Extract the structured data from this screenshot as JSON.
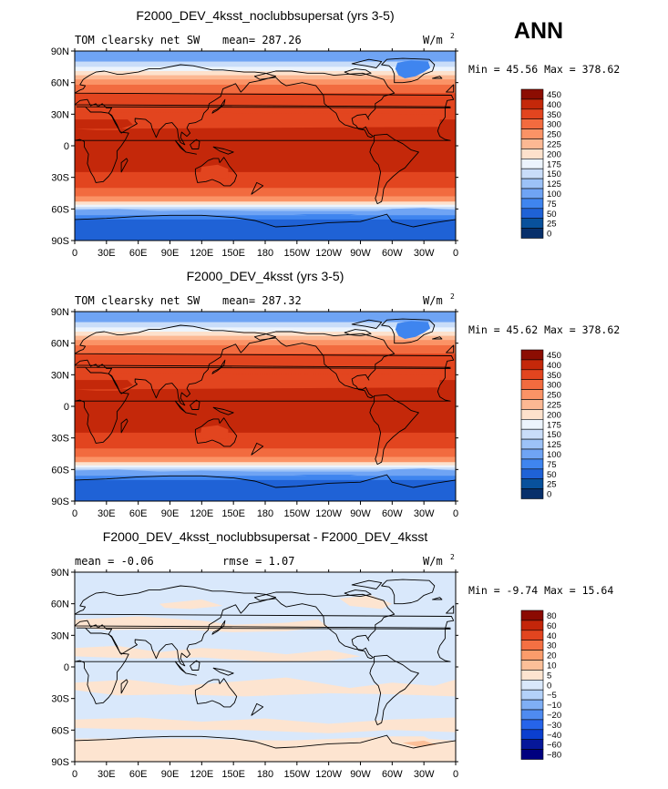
{
  "season": "ANN",
  "x_ticks": [
    "0",
    "30E",
    "60E",
    "90E",
    "120E",
    "150E",
    "180",
    "150W",
    "120W",
    "90W",
    "60W",
    "30W",
    "0"
  ],
  "y_ticks": [
    "90N",
    "60N",
    "30N",
    "0",
    "30S",
    "60S",
    "90S"
  ],
  "colors": {
    "abs": [
      "#08306b",
      "#08519c",
      "#1f62d6",
      "#3f85ef",
      "#6fa4f4",
      "#9cc2f7",
      "#c9ddf9",
      "#ecf4fd",
      "#fde1cc",
      "#fcb893",
      "#fb9366",
      "#f26b3f",
      "#e2451f",
      "#c4280a",
      "#8c0d02"
    ],
    "diff": [
      "#00007f",
      "#06179a",
      "#0b3fcf",
      "#2664ea",
      "#4f8bf1",
      "#7faff5",
      "#b3d1f9",
      "#d9e8fb",
      "#fde4d0",
      "#fcbf98",
      "#fb9c6b",
      "#f47043",
      "#e2451f",
      "#c4260a",
      "#8b0a02"
    ]
  },
  "chart_data": [
    {
      "type": "heatmap",
      "title": "F2000_DEV_4ksst_noclubbsupersat (yrs 3-5)",
      "left_label": "TOM clearsky net SW",
      "center_label": "mean= 287.26",
      "units_label": "W/m",
      "units_exponent": "2",
      "stats_label": "Min =  45.56 Max = 378.62",
      "min": 45.56,
      "max": 378.62,
      "mean": 287.26,
      "xlim": [
        0,
        360
      ],
      "ylim": [
        -90,
        90
      ],
      "colorbar_labels": [
        "450",
        "400",
        "350",
        "300",
        "250",
        "225",
        "200",
        "175",
        "150",
        "125",
        "100",
        "75",
        "50",
        "25",
        "0"
      ],
      "palette": "abs"
    },
    {
      "type": "heatmap",
      "title": "F2000_DEV_4ksst (yrs 3-5)",
      "left_label": "TOM clearsky net SW",
      "center_label": "mean= 287.32",
      "units_label": "W/m",
      "units_exponent": "2",
      "stats_label": "Min =  45.62 Max = 378.62",
      "min": 45.62,
      "max": 378.62,
      "mean": 287.32,
      "xlim": [
        0,
        360
      ],
      "ylim": [
        -90,
        90
      ],
      "colorbar_labels": [
        "450",
        "400",
        "350",
        "300",
        "250",
        "225",
        "200",
        "175",
        "150",
        "125",
        "100",
        "75",
        "50",
        "25",
        "0"
      ],
      "palette": "abs"
    },
    {
      "type": "heatmap",
      "title": "F2000_DEV_4ksst_noclubbsupersat - F2000_DEV_4ksst",
      "left_label": "mean =   -0.06",
      "center_label": "rmse =    1.07",
      "units_label": "W/m",
      "units_exponent": "2",
      "stats_label": "Min =  -9.74 Max =  15.64",
      "min": -9.74,
      "max": 15.64,
      "mean": -0.06,
      "rmse": 1.07,
      "xlim": [
        0,
        360
      ],
      "ylim": [
        -90,
        90
      ],
      "colorbar_labels": [
        "80",
        "60",
        "40",
        "30",
        "20",
        "10",
        "5",
        "0",
        "−5",
        "−10",
        "−20",
        "−30",
        "−40",
        "−60",
        "−80"
      ],
      "palette": "diff"
    }
  ]
}
